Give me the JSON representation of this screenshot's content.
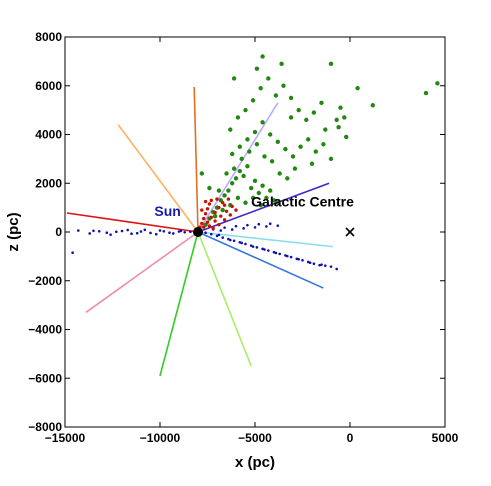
{
  "chart_data": {
    "type": "scatter",
    "xlabel": "x (pc)",
    "ylabel": "z (pc)",
    "xlim": [
      -15000,
      5000
    ],
    "ylim": [
      -8000,
      8000
    ],
    "x_ticks": [
      -15000,
      -10000,
      -5000,
      0,
      5000
    ],
    "y_ticks": [
      -8000,
      -6000,
      -4000,
      -2000,
      0,
      2000,
      4000,
      6000,
      8000
    ],
    "x_tick_labels": [
      "−15000",
      "−10000",
      "−5000",
      "0",
      "5000"
    ],
    "y_tick_labels": [
      "−8000",
      "−6000",
      "−4000",
      "−2000",
      "0",
      "2000",
      "4000",
      "6000",
      "8000"
    ],
    "grid": false,
    "annotations": [
      {
        "text": "Sun",
        "x": -8000,
        "y": 0,
        "label_at": [
          -9600,
          650
        ],
        "color": "#1a1ab0"
      },
      {
        "text": "Galactic Centre",
        "x": 0,
        "y": 0,
        "label_at": [
          -2500,
          1050
        ],
        "color": "#000000"
      }
    ],
    "markers": [
      {
        "name": "sun-marker",
        "x": -8000,
        "y": 0,
        "symbol": "filled-circle",
        "color": "#000000"
      },
      {
        "name": "galactic-centre-marker",
        "x": 0,
        "y": 0,
        "symbol": "cross",
        "color": "#000000"
      }
    ],
    "lines_of_sight": [
      {
        "color": "#e07020",
        "x": [
          -8000,
          -8200
        ],
        "y": [
          0,
          5950
        ]
      },
      {
        "color": "#ffb060",
        "x": [
          -8000,
          -12200
        ],
        "y": [
          0,
          4400
        ]
      },
      {
        "color": "#e01010",
        "x": [
          -8000,
          -14900
        ],
        "y": [
          0,
          780
        ]
      },
      {
        "color": "#f08ab0",
        "x": [
          -8000,
          -13900
        ],
        "y": [
          0,
          -3300
        ]
      },
      {
        "color": "#33cc22",
        "x": [
          -8000,
          -10000
        ],
        "y": [
          0,
          -5900
        ]
      },
      {
        "color": "#aaee66",
        "x": [
          -8000,
          -5200
        ],
        "y": [
          0,
          -5500
        ]
      },
      {
        "color": "#3377dd",
        "x": [
          -8000,
          -1400
        ],
        "y": [
          0,
          -2300
        ]
      },
      {
        "color": "#88ddf0",
        "x": [
          -8000,
          -900
        ],
        "y": [
          0,
          -600
        ]
      },
      {
        "color": "#4422cc",
        "x": [
          -8000,
          -1100
        ],
        "y": [
          0,
          2000
        ]
      },
      {
        "color": "#bbaaff",
        "x": [
          -8000,
          -3800
        ],
        "y": [
          0,
          5300
        ]
      }
    ],
    "series": [
      {
        "color": "#1010b0",
        "marker_size": 1.3,
        "points": [
          [
            -14600,
            -850
          ],
          [
            -14300,
            60
          ],
          [
            -13700,
            -60
          ],
          [
            -13200,
            30
          ],
          [
            -12600,
            -110
          ],
          [
            -12000,
            40
          ],
          [
            -11500,
            -70
          ],
          [
            -11000,
            20
          ],
          [
            -10500,
            -40
          ],
          [
            -10000,
            60
          ],
          [
            -9500,
            -30
          ],
          [
            -9000,
            20
          ],
          [
            -8700,
            -10
          ],
          [
            -8400,
            10
          ],
          [
            -13500,
            50
          ],
          [
            -12800,
            -30
          ],
          [
            -12300,
            10
          ],
          [
            -11700,
            80
          ],
          [
            -11200,
            -50
          ],
          [
            -10800,
            90
          ],
          [
            -10200,
            -90
          ],
          [
            -9800,
            30
          ],
          [
            -9300,
            -60
          ],
          [
            -8900,
            50
          ],
          [
            -7600,
            -30
          ],
          [
            -7300,
            -90
          ],
          [
            -7000,
            -160
          ],
          [
            -6700,
            -230
          ],
          [
            -6400,
            -290
          ],
          [
            -6100,
            -360
          ],
          [
            -5800,
            -420
          ],
          [
            -5500,
            -490
          ],
          [
            -5200,
            -560
          ],
          [
            -4900,
            -630
          ],
          [
            -4600,
            -690
          ],
          [
            -4300,
            -760
          ],
          [
            -4000,
            -830
          ],
          [
            -3700,
            -900
          ],
          [
            -3400,
            -960
          ],
          [
            -3100,
            -1030
          ],
          [
            -2800,
            -1100
          ],
          [
            -2500,
            -1160
          ],
          [
            -2200,
            -1230
          ],
          [
            -1900,
            -1300
          ],
          [
            -1600,
            -1360
          ],
          [
            -1300,
            -1380
          ],
          [
            -1000,
            -1420
          ],
          [
            -700,
            -1520
          ],
          [
            -6900,
            -120
          ],
          [
            -6300,
            -330
          ],
          [
            -5700,
            -450
          ],
          [
            -5100,
            -600
          ],
          [
            -4500,
            -720
          ],
          [
            -3900,
            -860
          ],
          [
            -3300,
            -990
          ],
          [
            -2700,
            -1120
          ],
          [
            -2100,
            -1260
          ],
          [
            -1500,
            -1340
          ],
          [
            -7200,
            110
          ],
          [
            -6600,
            180
          ],
          [
            -6000,
            240
          ],
          [
            -5400,
            280
          ],
          [
            -4800,
            320
          ],
          [
            -4200,
            340
          ],
          [
            -6800,
            60
          ],
          [
            -6200,
            100
          ],
          [
            -5600,
            150
          ],
          [
            -5000,
            190
          ],
          [
            -4400,
            230
          ],
          [
            -3800,
            260
          ]
        ]
      },
      {
        "color": "#228811",
        "marker_size": 2.2,
        "points": [
          [
            -7600,
            300
          ],
          [
            -7400,
            550
          ],
          [
            -7200,
            820
          ],
          [
            -7000,
            1000
          ],
          [
            -6800,
            1300
          ],
          [
            -6600,
            1500
          ],
          [
            -6400,
            1700
          ],
          [
            -6200,
            2000
          ],
          [
            -6000,
            2200
          ],
          [
            -5800,
            2500
          ],
          [
            -5600,
            2300
          ],
          [
            -5400,
            2700
          ],
          [
            -5200,
            1800
          ],
          [
            -5000,
            2100
          ],
          [
            -4800,
            1600
          ],
          [
            -4600,
            1900
          ],
          [
            -4400,
            1400
          ],
          [
            -4200,
            1700
          ],
          [
            -4000,
            1300
          ],
          [
            -3800,
            1200
          ],
          [
            -6700,
            900
          ],
          [
            -6300,
            1100
          ],
          [
            -5900,
            1400
          ],
          [
            -5500,
            1200
          ],
          [
            -5100,
            1400
          ],
          [
            -4700,
            1100
          ],
          [
            -7100,
            650
          ],
          [
            -6900,
            1700
          ],
          [
            -6500,
            2400
          ],
          [
            -6100,
            2600
          ],
          [
            -5700,
            3000
          ],
          [
            -5300,
            3300
          ],
          [
            -4900,
            3600
          ],
          [
            -4500,
            3100
          ],
          [
            -4100,
            2900
          ],
          [
            -3700,
            2400
          ],
          [
            -3300,
            2200
          ],
          [
            -2900,
            2600
          ],
          [
            -6200,
            3200
          ],
          [
            -5800,
            3500
          ],
          [
            -5400,
            3800
          ],
          [
            -5000,
            4100
          ],
          [
            -4600,
            4500
          ],
          [
            -4200,
            4000
          ],
          [
            -3800,
            3700
          ],
          [
            -3400,
            3400
          ],
          [
            -3000,
            3100
          ],
          [
            -2600,
            3500
          ],
          [
            -2200,
            3800
          ],
          [
            -1800,
            3300
          ],
          [
            -1400,
            3600
          ],
          [
            -1000,
            3000
          ],
          [
            -600,
            4300
          ],
          [
            -200,
            3900
          ],
          [
            -6300,
            4200
          ],
          [
            -5900,
            4700
          ],
          [
            -5500,
            5000
          ],
          [
            -5100,
            5400
          ],
          [
            -4700,
            5900
          ],
          [
            -4300,
            6300
          ],
          [
            -3900,
            5600
          ],
          [
            -3500,
            6000
          ],
          [
            -3100,
            5500
          ],
          [
            -2700,
            5000
          ],
          [
            -2300,
            4600
          ],
          [
            -1900,
            4900
          ],
          [
            -1500,
            5300
          ],
          [
            -700,
            4600
          ],
          [
            -7400,
            1800
          ],
          [
            -7800,
            2400
          ],
          [
            -6100,
            6300
          ],
          [
            -4600,
            7200
          ],
          [
            -4900,
            6700
          ],
          [
            -3600,
            6900
          ],
          [
            -1000,
            6900
          ],
          [
            -500,
            5100
          ],
          [
            400,
            5900
          ],
          [
            1200,
            5200
          ],
          [
            4000,
            5700
          ],
          [
            4600,
            6100
          ],
          [
            -300,
            4700
          ],
          [
            -2000,
            2800
          ],
          [
            -1300,
            4200
          ],
          [
            -3100,
            4700
          ]
        ]
      },
      {
        "color": "#cc1100",
        "marker_size": 1.7,
        "points": [
          [
            -7900,
            200
          ],
          [
            -7800,
            350
          ],
          [
            -7700,
            550
          ],
          [
            -7600,
            750
          ],
          [
            -7500,
            950
          ],
          [
            -7400,
            1150
          ],
          [
            -7300,
            1300
          ],
          [
            -7700,
            200
          ],
          [
            -7500,
            400
          ],
          [
            -7300,
            600
          ],
          [
            -7100,
            800
          ],
          [
            -6900,
            1000
          ],
          [
            -6700,
            1200
          ],
          [
            -7400,
            250
          ],
          [
            -7100,
            450
          ],
          [
            -6800,
            650
          ],
          [
            -6500,
            850
          ],
          [
            -6200,
            1050
          ],
          [
            -7200,
            150
          ],
          [
            -6900,
            300
          ],
          [
            -6600,
            500
          ],
          [
            -6300,
            700
          ],
          [
            -7600,
            1250
          ],
          [
            -7800,
            900
          ],
          [
            -7000,
            1350
          ],
          [
            -6600,
            1100
          ],
          [
            -6000,
            900
          ],
          [
            -6400,
            1350
          ]
        ]
      }
    ]
  }
}
